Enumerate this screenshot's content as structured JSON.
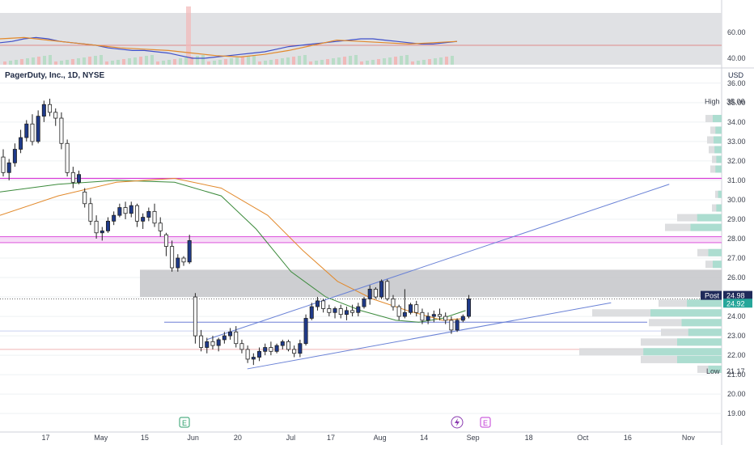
{
  "header": {
    "title": "PagerDuty, Inc., 1D, NYSE",
    "currency": "USD"
  },
  "chart_data": [
    {
      "type": "line",
      "name": "oscillator-pane",
      "ylim": [
        35,
        80
      ],
      "ticks": [
        "60.00",
        "40.00"
      ],
      "tick_values": [
        60,
        40
      ],
      "reference_value": 50,
      "band": [
        35,
        75
      ],
      "series": [
        {
          "x": [
            0,
            5,
            10,
            15,
            20,
            25,
            30,
            35,
            40,
            45,
            50,
            55,
            60,
            65,
            70,
            75,
            80,
            85,
            90,
            95,
            100,
            105,
            110,
            115,
            120,
            125,
            130,
            135,
            140,
            145,
            150,
            155,
            160,
            165,
            170,
            175,
            180,
            185,
            190
          ],
          "values": [
            52,
            53,
            55,
            56,
            55,
            53,
            52,
            51,
            50,
            48,
            47,
            46,
            46,
            45,
            44,
            42,
            40,
            40,
            41,
            42,
            43,
            44,
            45,
            47,
            49,
            50,
            51,
            52,
            53,
            54,
            55,
            55,
            54,
            53,
            52,
            51,
            51,
            52,
            53
          ]
        },
        {
          "x": [
            0,
            10,
            20,
            30,
            40,
            50,
            60,
            70,
            80,
            90,
            100,
            110,
            120,
            130,
            140,
            150,
            160,
            170,
            180,
            190
          ],
          "values": [
            55,
            56,
            54,
            52,
            50,
            48,
            47,
            46,
            44,
            42,
            41,
            43,
            46,
            50,
            54,
            53,
            52,
            51,
            52,
            53
          ]
        }
      ]
    },
    {
      "type": "candlestick",
      "name": "price-pane",
      "ylim": [
        18.3,
        36.2
      ],
      "y_ticks": [
        "36.00",
        "35.00",
        "34.00",
        "33.00",
        "32.00",
        "31.00",
        "30.00",
        "29.00",
        "28.00",
        "27.00",
        "26.00",
        "25.00",
        "24.00",
        "23.00",
        "22.00",
        "21.00",
        "20.00",
        "19.00"
      ],
      "y_tick_values": [
        36,
        35,
        34,
        33,
        32,
        31,
        30,
        29,
        28,
        27,
        26,
        25,
        24,
        23,
        22,
        21,
        20,
        19
      ],
      "x_ticks": [
        "17",
        "May",
        "15",
        "Jun",
        "20",
        "Jul",
        "17",
        "Aug",
        "14",
        "Sep",
        "18",
        "Oct",
        "16",
        "Nov"
      ],
      "x_tick_values": [
        8,
        17,
        25,
        33,
        41,
        50,
        57,
        65,
        73,
        81,
        91,
        100,
        108,
        118
      ],
      "xlim": [
        0,
        124
      ],
      "candles": [
        [
          0,
          32.2,
          32.6,
          31.2,
          31.4
        ],
        [
          1,
          31.4,
          32.1,
          31.0,
          31.9
        ],
        [
          2,
          31.9,
          32.9,
          31.7,
          32.6
        ],
        [
          3,
          32.6,
          33.6,
          32.4,
          33.2
        ],
        [
          4,
          33.2,
          34.1,
          33.0,
          33.9
        ],
        [
          5,
          33.9,
          34.4,
          32.8,
          33.0
        ],
        [
          6,
          33.0,
          34.6,
          32.9,
          34.3
        ],
        [
          7,
          34.3,
          35.1,
          34.0,
          34.9
        ],
        [
          8,
          34.9,
          35.2,
          34.3,
          34.5
        ],
        [
          9,
          34.5,
          34.7,
          33.8,
          34.2
        ],
        [
          10,
          34.2,
          34.5,
          32.6,
          32.9
        ],
        [
          11,
          32.9,
          33.1,
          31.2,
          31.4
        ],
        [
          12,
          31.4,
          31.7,
          30.6,
          30.9
        ],
        [
          13,
          30.9,
          31.5,
          30.8,
          31.3
        ],
        [
          14,
          30.4,
          30.6,
          29.6,
          29.8
        ],
        [
          15,
          29.8,
          30.1,
          28.7,
          28.9
        ],
        [
          16,
          28.9,
          29.2,
          28.0,
          28.3
        ],
        [
          17,
          28.3,
          28.6,
          27.9,
          28.4
        ],
        [
          18,
          28.4,
          29.1,
          28.3,
          28.9
        ],
        [
          19,
          28.9,
          29.4,
          28.7,
          29.2
        ],
        [
          20,
          29.2,
          29.8,
          29.1,
          29.6
        ],
        [
          21,
          29.6,
          29.9,
          29.0,
          29.3
        ],
        [
          22,
          29.3,
          29.9,
          29.1,
          29.7
        ],
        [
          23,
          29.7,
          29.8,
          28.6,
          28.9
        ],
        [
          24,
          28.9,
          29.3,
          28.5,
          29.1
        ],
        [
          25,
          29.1,
          29.6,
          28.9,
          29.4
        ],
        [
          26,
          29.4,
          29.8,
          28.6,
          28.8
        ],
        [
          27,
          28.8,
          29.1,
          28.1,
          28.4
        ],
        [
          28,
          28.2,
          28.3,
          27.1,
          27.6
        ],
        [
          29,
          27.6,
          27.9,
          26.3,
          26.5
        ],
        [
          30,
          26.5,
          27.2,
          26.3,
          27.0
        ],
        [
          31,
          27.0,
          27.1,
          26.6,
          26.8
        ],
        [
          32,
          26.8,
          28.2,
          26.7,
          27.9
        ],
        [
          33,
          25.0,
          25.2,
          22.6,
          23.0
        ],
        [
          34,
          23.0,
          23.3,
          22.2,
          22.4
        ],
        [
          35,
          22.4,
          22.9,
          22.1,
          22.7
        ],
        [
          36,
          22.7,
          23.0,
          22.3,
          22.5
        ],
        [
          37,
          22.5,
          22.9,
          22.2,
          22.8
        ],
        [
          38,
          22.8,
          23.2,
          22.6,
          23.0
        ],
        [
          39,
          23.0,
          23.4,
          22.8,
          23.2
        ],
        [
          40,
          23.2,
          23.5,
          22.4,
          22.6
        ],
        [
          41,
          22.6,
          22.8,
          22.1,
          22.3
        ],
        [
          42,
          22.3,
          22.5,
          21.6,
          21.8
        ],
        [
          43,
          21.8,
          22.1,
          21.5,
          21.9
        ],
        [
          44,
          21.9,
          22.4,
          21.7,
          22.2
        ],
        [
          45,
          22.2,
          22.6,
          22.0,
          22.4
        ],
        [
          46,
          22.4,
          22.7,
          22.0,
          22.2
        ],
        [
          47,
          22.2,
          22.6,
          22.1,
          22.5
        ],
        [
          48,
          22.5,
          22.8,
          22.3,
          22.7
        ],
        [
          49,
          22.7,
          22.8,
          22.2,
          22.3
        ],
        [
          50,
          22.3,
          22.5,
          21.9,
          22.1
        ],
        [
          51,
          22.1,
          22.8,
          21.9,
          22.6
        ],
        [
          52,
          22.6,
          24.1,
          22.5,
          23.9
        ],
        [
          53,
          23.9,
          24.7,
          23.8,
          24.5
        ],
        [
          54,
          24.5,
          25.0,
          24.3,
          24.8
        ],
        [
          55,
          24.8,
          24.9,
          24.2,
          24.4
        ],
        [
          56,
          24.4,
          24.6,
          24.0,
          24.2
        ],
        [
          57,
          24.2,
          24.5,
          23.9,
          24.4
        ],
        [
          58,
          24.4,
          24.6,
          23.9,
          24.1
        ],
        [
          59,
          24.1,
          24.5,
          23.8,
          24.3
        ],
        [
          60,
          24.3,
          24.6,
          24.0,
          24.2
        ],
        [
          61,
          24.2,
          24.7,
          24.0,
          24.5
        ],
        [
          62,
          24.5,
          25.0,
          24.4,
          24.9
        ],
        [
          63,
          24.9,
          25.6,
          24.6,
          25.4
        ],
        [
          64,
          25.4,
          25.5,
          24.9,
          25.0
        ],
        [
          65,
          25.0,
          25.9,
          24.9,
          25.8
        ],
        [
          66,
          25.8,
          25.9,
          24.8,
          24.9
        ],
        [
          67,
          24.9,
          25.1,
          24.3,
          24.5
        ],
        [
          68,
          24.5,
          24.6,
          23.8,
          24.0
        ],
        [
          69,
          24.0,
          25.4,
          23.9,
          24.2
        ],
        [
          70,
          24.2,
          24.7,
          24.1,
          24.6
        ],
        [
          71,
          24.6,
          24.8,
          24.0,
          24.2
        ],
        [
          72,
          24.2,
          24.4,
          23.6,
          23.8
        ],
        [
          73,
          23.8,
          24.2,
          23.6,
          24.0
        ],
        [
          74,
          24.0,
          24.3,
          23.7,
          24.1
        ],
        [
          75,
          24.1,
          24.4,
          23.8,
          24.0
        ],
        [
          76,
          24.0,
          24.2,
          23.6,
          23.8
        ],
        [
          77,
          23.8,
          24.0,
          23.1,
          23.3
        ],
        [
          78,
          23.3,
          23.9,
          23.2,
          23.8
        ],
        [
          79,
          23.8,
          24.1,
          23.7,
          24.0
        ],
        [
          80,
          24.0,
          25.1,
          23.9,
          24.9
        ]
      ],
      "levels": {
        "magenta": [
          31.1,
          28.1,
          27.8
        ],
        "blue": [
          23.7
        ],
        "red": [
          22.3
        ],
        "dotted": [
          24.9
        ]
      },
      "zone": [
        25.0,
        26.4
      ],
      "labels": {
        "high": "High",
        "high_value": "35.06",
        "low": "Low",
        "low_value": "21.17",
        "post": "Post",
        "post_value": "24.98",
        "last_value": "24.92"
      },
      "events": [
        "E",
        "E"
      ]
    }
  ],
  "colors": {
    "up": "#1f3a8a",
    "down": "#ffffff",
    "wick": "#222222",
    "grid": "#eef0f3",
    "magenta": "#d63ad6",
    "band": "#e0e1e4",
    "zone": "#c4c5c9",
    "trend": "#6a82d6",
    "sma_green": "#3b8a3b",
    "sma_orange": "#e2892b",
    "teal": "#26a69a",
    "blue_line": "#3f4fc9"
  }
}
